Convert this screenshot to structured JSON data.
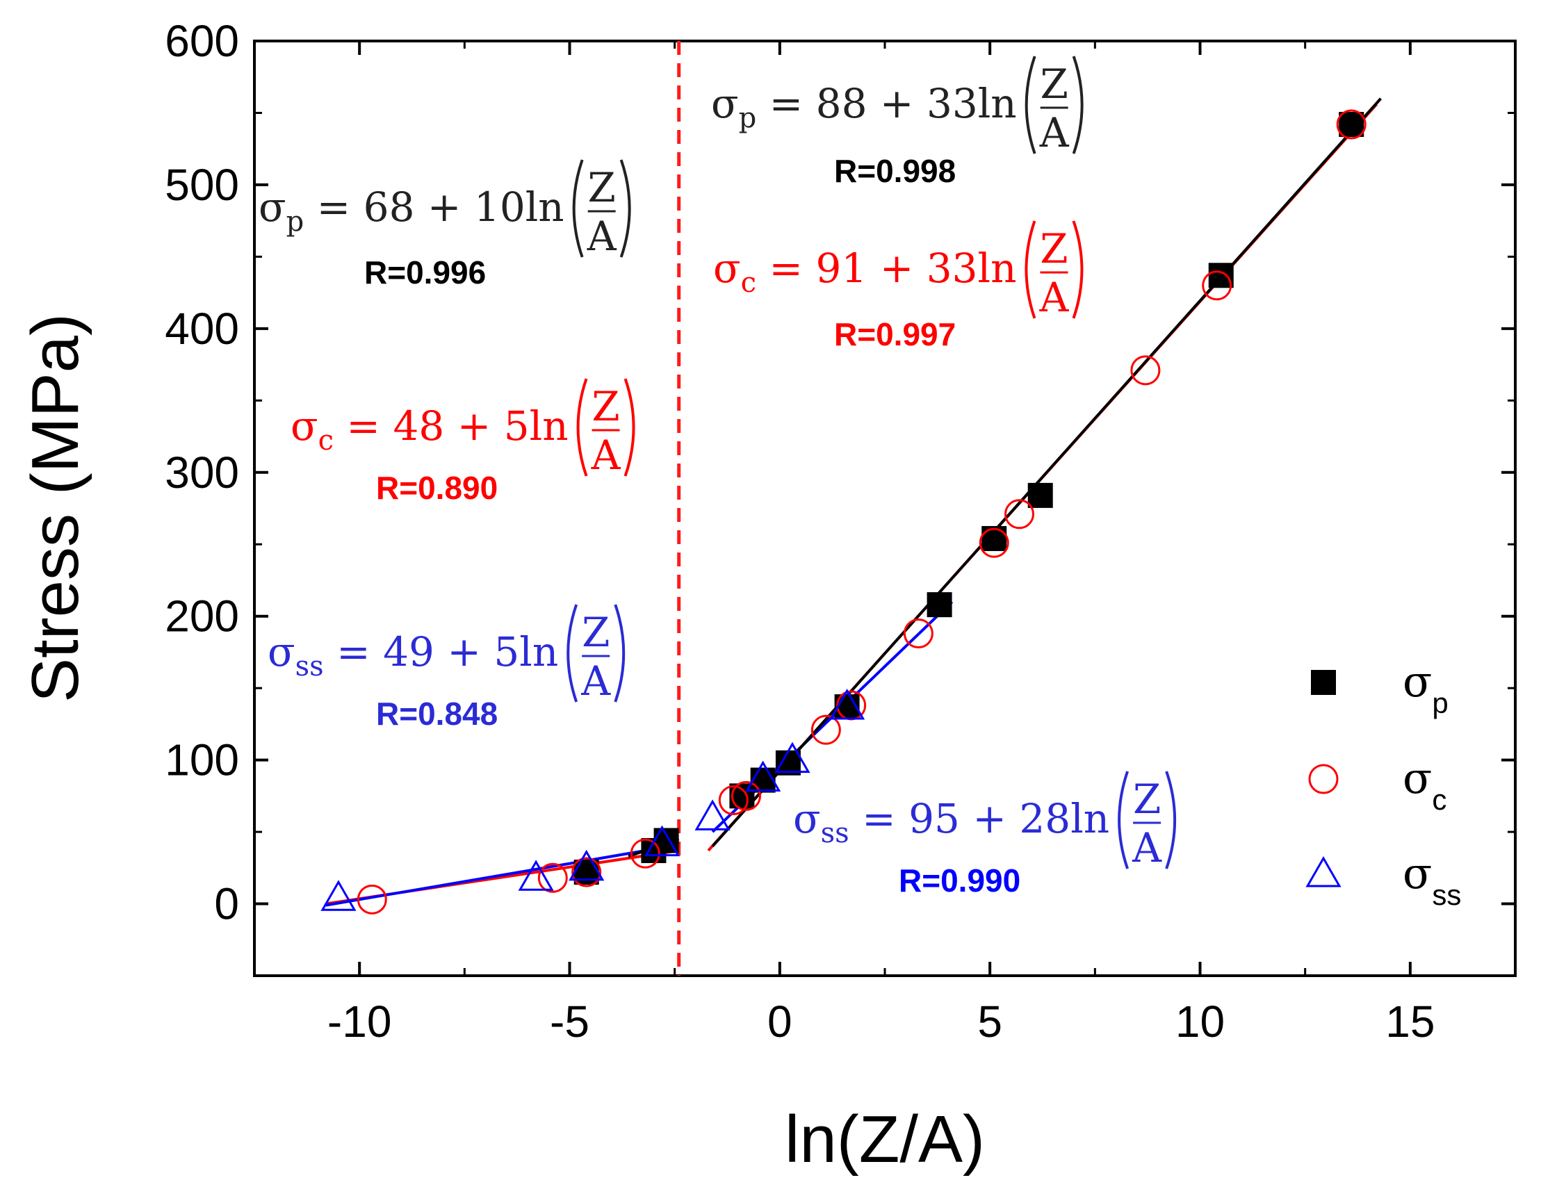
{
  "chart_data": {
    "type": "scatter",
    "xlabel": "ln(Z/A)",
    "ylabel": "Stress (MPa)",
    "xlim": [
      -12.5,
      17.5
    ],
    "ylim": [
      -50,
      600
    ],
    "xticks": [
      -10,
      -5,
      0,
      5,
      10,
      15
    ],
    "yticks": [
      0,
      100,
      200,
      300,
      400,
      500,
      600
    ],
    "xtick_labels": [
      "-10",
      "-5",
      "0",
      "5",
      "10",
      "15"
    ],
    "ytick_labels": [
      "0",
      "100",
      "200",
      "300",
      "400",
      "500",
      "600"
    ],
    "divider_x": -2.4,
    "series": [
      {
        "name": "σp",
        "base": "σ",
        "sub": "p",
        "marker": "square",
        "color": "#000000",
        "x": [
          -4.6,
          -3.0,
          -2.7,
          -0.9,
          -0.4,
          0.2,
          1.6,
          3.8,
          5.1,
          6.2,
          10.5,
          13.6
        ],
        "y": [
          22,
          37,
          44,
          75,
          86,
          98,
          137,
          208,
          254,
          284,
          437,
          542
        ]
      },
      {
        "name": "σc",
        "base": "σ",
        "sub": "c",
        "marker": "circle",
        "color": "#ff0000",
        "x": [
          -9.7,
          -5.4,
          -4.6,
          -3.2,
          -1.1,
          -0.8,
          1.1,
          1.7,
          3.3,
          5.1,
          5.7,
          8.7,
          10.4,
          13.6
        ],
        "y": [
          3,
          18,
          22,
          35,
          72,
          75,
          121,
          138,
          188,
          251,
          271,
          371,
          430,
          542
        ]
      },
      {
        "name": "σss",
        "base": "σ",
        "sub": "ss",
        "marker": "triangle",
        "color": "#0000ff",
        "x": [
          -10.5,
          -5.8,
          -4.6,
          -2.8,
          -1.6,
          -0.4,
          0.3,
          1.6
        ],
        "y": [
          4,
          18,
          25,
          42,
          60,
          87,
          100,
          137
        ]
      }
    ],
    "fit_lines": [
      {
        "color": "#ff0000",
        "x": [
          -10.8,
          -2.4
        ],
        "y": [
          0,
          37
        ]
      },
      {
        "color": "#0000ff",
        "x": [
          -10.8,
          -2.6
        ],
        "y": [
          -1,
          40
        ]
      },
      {
        "color": "#000000",
        "x": [
          -3.6,
          -2.4
        ],
        "y": [
          33,
          45
        ]
      },
      {
        "color": "#0000ff",
        "x": [
          -1.6,
          4.1
        ],
        "y": [
          50,
          210
        ]
      },
      {
        "color": "#ff0000",
        "x": [
          -1.7,
          14.2
        ],
        "y": [
          37,
          556
        ]
      },
      {
        "color": "#000000",
        "x": [
          -1.6,
          14.3
        ],
        "y": [
          40,
          560
        ]
      }
    ],
    "annotations": [
      {
        "id": "left-p",
        "color": "#222222",
        "lhs_base": "σ",
        "lhs_sub": "p",
        "rhs": "= 68 + 10ln",
        "num": "Z",
        "den": "A",
        "r": "R=0.996",
        "r_color": "#000000"
      },
      {
        "id": "left-c",
        "color": "#ff0000",
        "lhs_base": "σ",
        "lhs_sub": "c",
        "rhs": "= 48 + 5ln",
        "num": "Z",
        "den": "A",
        "r": "R=0.890",
        "r_color": "#ff0000"
      },
      {
        "id": "left-ss",
        "color": "#2b2bd6",
        "lhs_base": "σ",
        "lhs_sub": "ss",
        "rhs": "= 49 + 5ln",
        "num": "Z",
        "den": "A",
        "r": "R=0.848",
        "r_color": "#2b2bd6"
      },
      {
        "id": "right-p",
        "color": "#222222",
        "lhs_base": "σ",
        "lhs_sub": "p",
        "rhs": "= 88 + 33ln",
        "num": "Z",
        "den": "A",
        "r": "R=0.998",
        "r_color": "#000000"
      },
      {
        "id": "right-c",
        "color": "#ff0000",
        "lhs_base": "σ",
        "lhs_sub": "c",
        "rhs": "= 91 + 33ln",
        "num": "Z",
        "den": "A",
        "r": "R=0.997",
        "r_color": "#ff0000"
      },
      {
        "id": "right-ss",
        "color": "#2b2bd6",
        "lhs_base": "σ",
        "lhs_sub": "ss",
        "rhs": "= 95 + 28ln",
        "num": "Z",
        "den": "A",
        "r": "R=0.990",
        "r_color": "#0000ff"
      }
    ],
    "legend_position": "right"
  }
}
